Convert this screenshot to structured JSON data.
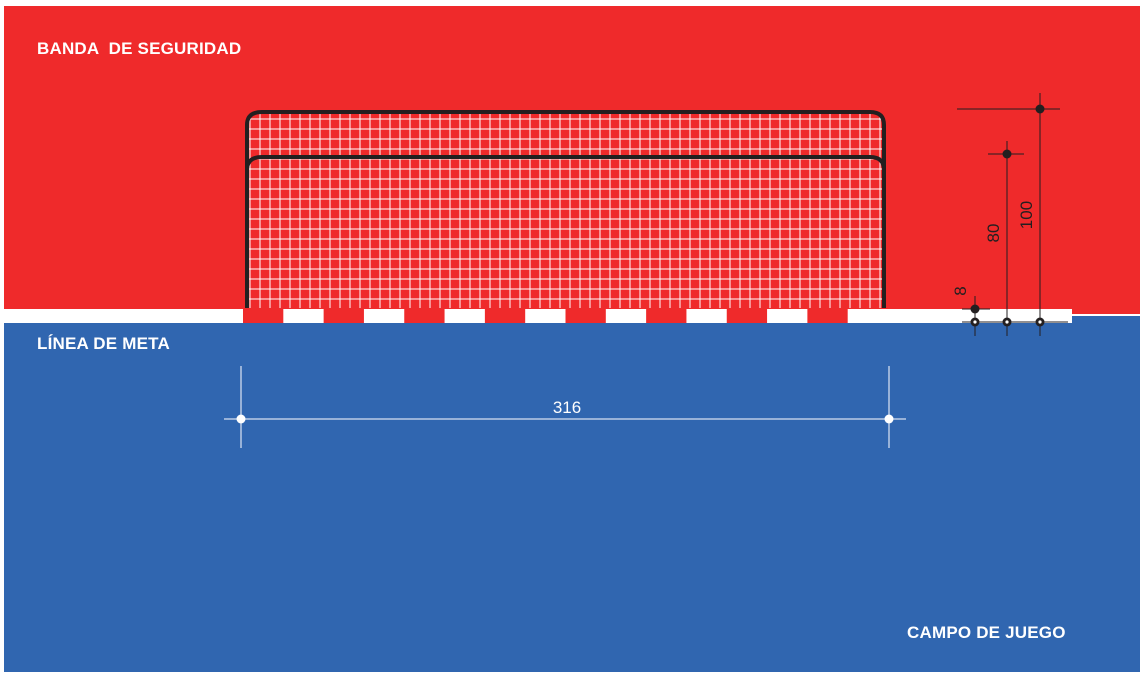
{
  "labels": {
    "safety_band": "BANDA  DE SEGURIDAD",
    "goal_line": "LÍNEA DE META",
    "playing_field": "CAMPO DE JUEGO"
  },
  "dimensions": {
    "goal_width": "316",
    "post_width": "8",
    "goal_height": "80",
    "goal_depth_height": "100"
  },
  "colors": {
    "safety_band": "#ef2a2b",
    "playing_field": "#3066b0",
    "goal_line": "#ffffff",
    "goal_frame": "#231f20",
    "net": "#ffffff",
    "dimension_lines": "#231f20"
  }
}
